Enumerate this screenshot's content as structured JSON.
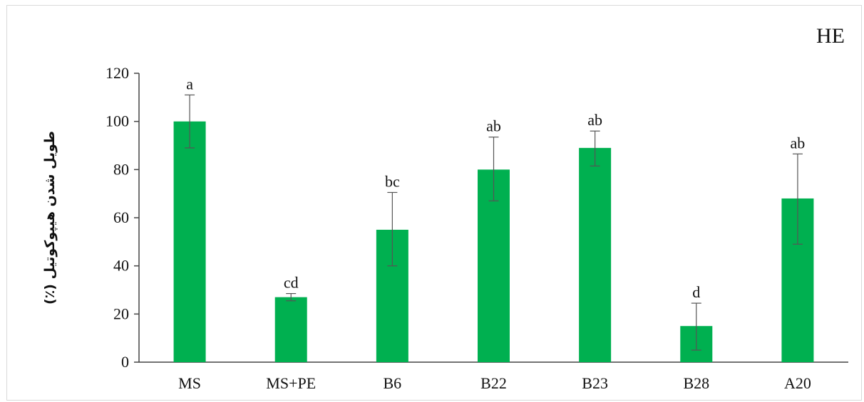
{
  "chart_data": {
    "type": "bar",
    "title": "HE",
    "xlabel": "",
    "ylabel": "طویل شدن هیپوکوتیل (٪)",
    "ylim": [
      0,
      120
    ],
    "yticks": [
      0,
      20,
      40,
      60,
      80,
      100,
      120
    ],
    "categories": [
      "MS",
      "MS+PE",
      "B6",
      "B22",
      "B23",
      "B28",
      "A20"
    ],
    "values": [
      100,
      27,
      55,
      80,
      89,
      15,
      68
    ],
    "error_low": [
      89,
      25.5,
      40,
      67,
      81.5,
      5,
      49
    ],
    "error_high": [
      111,
      28.5,
      70.5,
      93.5,
      96,
      24.5,
      86.5
    ],
    "significance_letters": [
      "a",
      "cd",
      "bc",
      "ab",
      "ab",
      "d",
      "ab"
    ],
    "grid": false,
    "legend": "none",
    "colors": {
      "bar": "#00b050",
      "axis": "#444444",
      "error": "#555555"
    }
  }
}
